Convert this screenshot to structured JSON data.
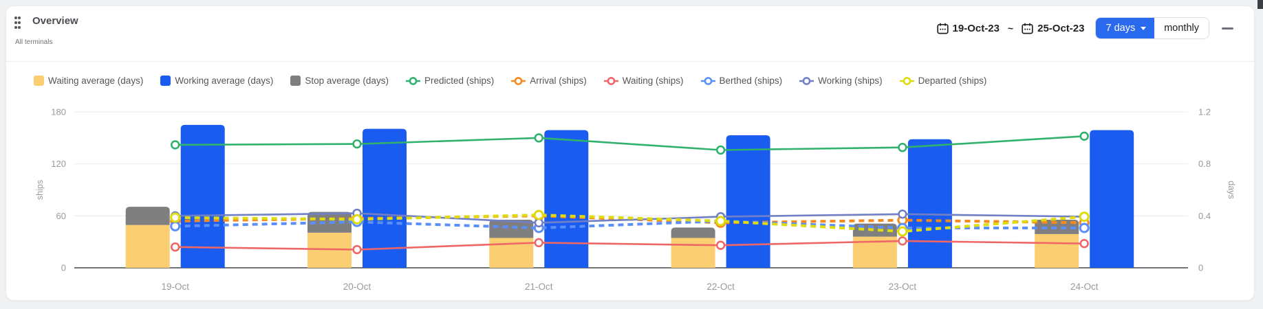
{
  "header": {
    "title": "Overview",
    "subtitle": "All terminals"
  },
  "controls": {
    "date_start": "19-Oct-23",
    "date_separator": "~",
    "date_end": "25-Oct-23",
    "range_button": "7 days",
    "monthly_button": "monthly"
  },
  "colors": {
    "accent_blue": "#2a6aee",
    "bar_waiting": "#FBCE72",
    "bar_working": "#1A5CF0",
    "bar_stop": "#7F7F7F",
    "line_predicted": "#30B26D",
    "line_arrival": "#F58A1E",
    "line_waiting": "#EE6666",
    "line_berthed": "#5B8FF9",
    "line_working": "#7180C5",
    "line_departed": "#DEDB0F"
  },
  "chart_data": {
    "type": "combo-bar-line",
    "categories": [
      "19-Oct",
      "20-Oct",
      "21-Oct",
      "22-Oct",
      "23-Oct",
      "24-Oct"
    ],
    "left_axis": {
      "label": "ships",
      "ticks": [
        0,
        60,
        120,
        180
      ],
      "max": 180
    },
    "right_axis": {
      "label": "days",
      "ticks": [
        0,
        0.4,
        0.8,
        1.2
      ],
      "max": 1.2
    },
    "grid": true,
    "legend_position": "top",
    "bar_series": [
      {
        "name": "Waiting average (days)",
        "axis": "right",
        "stack": "avg",
        "color": "#FBCE72",
        "values": [
          0.33,
          0.27,
          0.23,
          0.23,
          0.24,
          0.26
        ]
      },
      {
        "name": "Stop average (days)",
        "axis": "right",
        "stack": "avg",
        "color": "#7F7F7F",
        "values": [
          0.14,
          0.16,
          0.14,
          0.08,
          0.1,
          0.11
        ]
      },
      {
        "name": "Working average (days)",
        "axis": "right",
        "stack": null,
        "color": "#1A5CF0",
        "values": [
          1.1,
          1.07,
          1.06,
          1.02,
          0.99,
          1.06
        ]
      }
    ],
    "line_series": [
      {
        "name": "Predicted (ships)",
        "axis": "left",
        "color": "#30B26D",
        "dashed": false,
        "values": [
          142,
          143,
          150,
          136,
          139,
          152
        ]
      },
      {
        "name": "Arrival (ships)",
        "axis": "left",
        "color": "#F58A1E",
        "dashed": true,
        "values": [
          54,
          57,
          60,
          52,
          55,
          52
        ]
      },
      {
        "name": "Waiting (ships)",
        "axis": "left",
        "color": "#EE6666",
        "dashed": false,
        "values": [
          24,
          21,
          29,
          26,
          31,
          28
        ]
      },
      {
        "name": "Berthed (ships)",
        "axis": "left",
        "color": "#5B8FF9",
        "dashed": true,
        "values": [
          48,
          53,
          46,
          54,
          46,
          46
        ]
      },
      {
        "name": "Working (ships)",
        "axis": "left",
        "color": "#7180C5",
        "dashed": false,
        "values": [
          60,
          63,
          52,
          59,
          62,
          59
        ]
      },
      {
        "name": "Departed (ships)",
        "axis": "left",
        "color": "#DEDB0F",
        "dashed": true,
        "values": [
          58,
          56,
          61,
          54,
          42,
          59
        ]
      }
    ],
    "legend_order": [
      "Waiting average (days)",
      "Working average (days)",
      "Stop average (days)",
      "Predicted (ships)",
      "Arrival (ships)",
      "Waiting (ships)",
      "Berthed (ships)",
      "Working (ships)",
      "Departed (ships)"
    ]
  }
}
